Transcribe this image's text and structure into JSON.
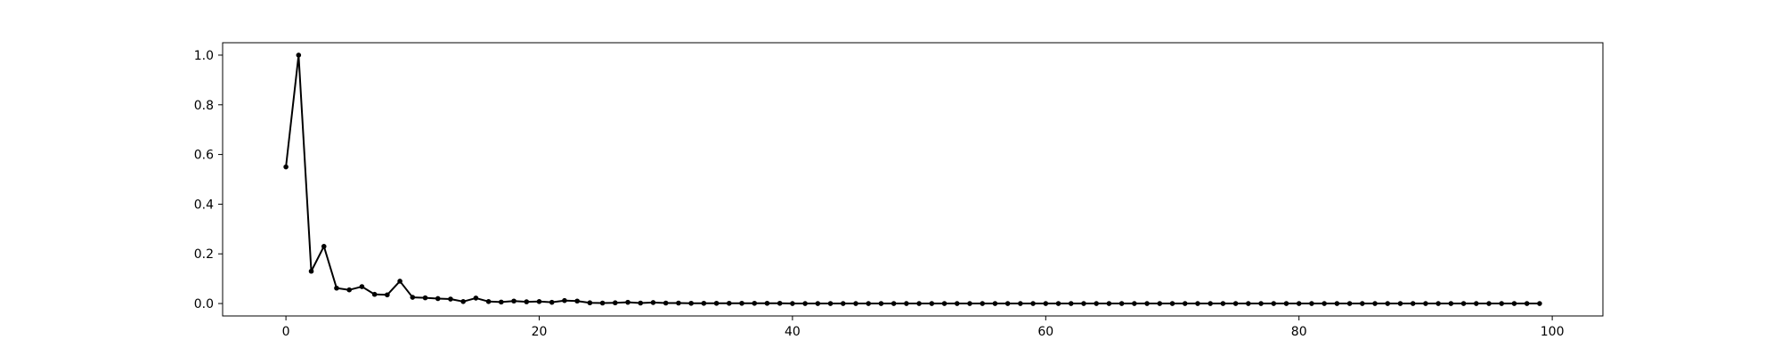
{
  "chart_data": {
    "type": "line",
    "title": "",
    "xlabel": "",
    "ylabel": "",
    "xlim": [
      -5,
      104
    ],
    "ylim": [
      -0.05,
      1.05
    ],
    "x_ticks": [
      0,
      20,
      40,
      60,
      80,
      100
    ],
    "x_tick_labels": [
      "0",
      "20",
      "40",
      "60",
      "80",
      "100"
    ],
    "y_ticks": [
      0.0,
      0.2,
      0.4,
      0.6,
      0.8,
      1.0
    ],
    "y_tick_labels": [
      "0.0",
      "0.2",
      "0.4",
      "0.6",
      "0.8",
      "1.0"
    ],
    "grid": false,
    "legend": "none",
    "line_color": "#000000",
    "marker": "circle",
    "series": [
      {
        "x": [
          0,
          1,
          2,
          3,
          4,
          5,
          6,
          7,
          8,
          9,
          10,
          11,
          12,
          13,
          14,
          15,
          16,
          17,
          18,
          19,
          20,
          21,
          22,
          23,
          24,
          25,
          26,
          27,
          28,
          29,
          30,
          31,
          32,
          33,
          34,
          35,
          36,
          37,
          38,
          39,
          40,
          41,
          42,
          43,
          44,
          45,
          46,
          47,
          48,
          49,
          50,
          51,
          52,
          53,
          54,
          55,
          56,
          57,
          58,
          59,
          60,
          61,
          62,
          63,
          64,
          65,
          66,
          67,
          68,
          69,
          70,
          71,
          72,
          73,
          74,
          75,
          76,
          77,
          78,
          79,
          80,
          81,
          82,
          83,
          84,
          85,
          86,
          87,
          88,
          89,
          90,
          91,
          92,
          93,
          94,
          95,
          96,
          97,
          98,
          99
        ],
        "values": [
          0.55,
          1.0,
          0.13,
          0.23,
          0.062,
          0.055,
          0.068,
          0.037,
          0.035,
          0.09,
          0.025,
          0.023,
          0.02,
          0.018,
          0.008,
          0.022,
          0.008,
          0.006,
          0.01,
          0.007,
          0.008,
          0.005,
          0.012,
          0.01,
          0.003,
          0.002,
          0.003,
          0.005,
          0.002,
          0.004,
          0.002,
          0.002,
          0.001,
          0.001,
          0.001,
          0.001,
          0.001,
          0.001,
          0.001,
          0.001,
          0.0,
          0.0,
          0.0,
          0.0,
          0.0,
          0.0,
          0.0,
          0.0,
          0.0,
          0.0,
          0.0,
          0.0,
          0.0,
          0.0,
          0.0,
          0.0,
          0.0,
          0.0,
          0.0,
          0.0,
          0.0,
          0.0,
          0.0,
          0.0,
          0.0,
          0.0,
          0.0,
          0.0,
          0.0,
          0.0,
          0.0,
          0.0,
          0.0,
          0.0,
          0.0,
          0.0,
          0.0,
          0.0,
          0.0,
          0.0,
          0.0,
          0.0,
          0.0,
          0.0,
          0.0,
          0.0,
          0.0,
          0.0,
          0.0,
          0.0,
          0.0,
          0.0,
          0.0,
          0.0,
          0.0,
          0.0,
          0.0,
          0.0,
          0.0,
          0.0
        ]
      }
    ]
  }
}
